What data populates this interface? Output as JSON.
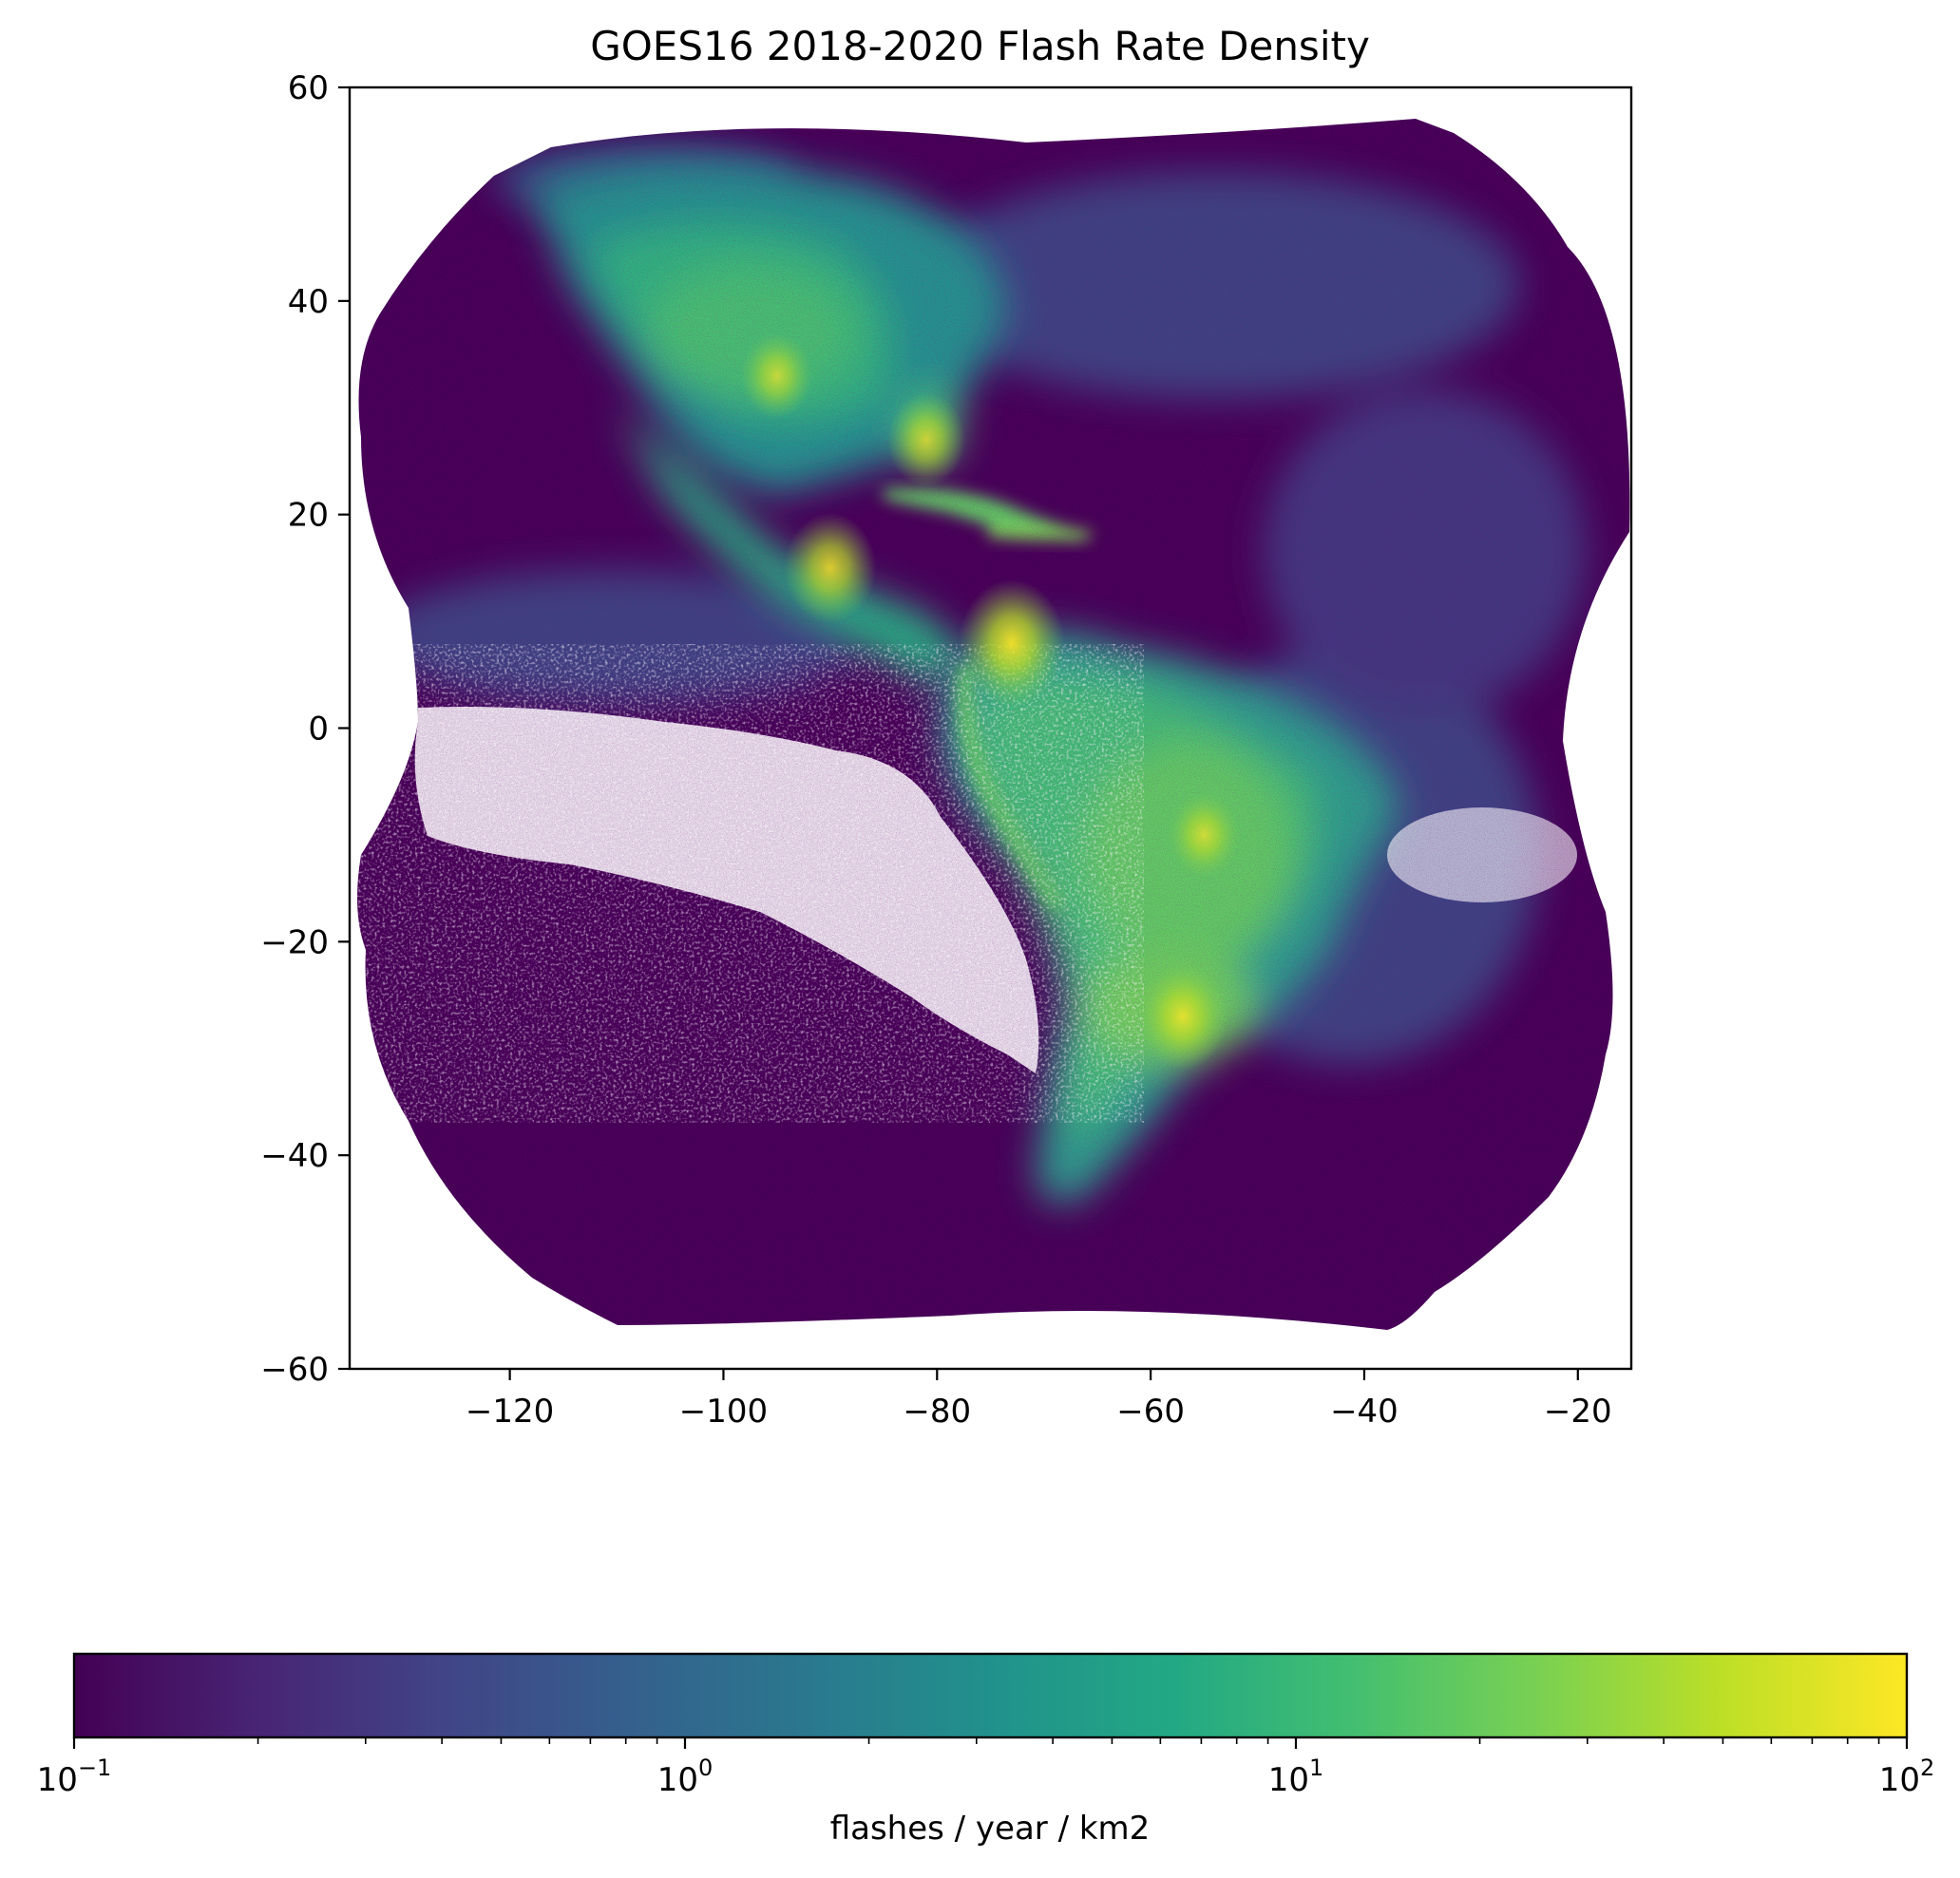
{
  "chart_data": {
    "type": "heatmap",
    "title": "GOES16 2018-2020 Flash Rate Density",
    "xlabel": "",
    "ylabel": "",
    "xlim": [
      -135,
      -15
    ],
    "ylim": [
      -60,
      60
    ],
    "x_ticks": [
      -120,
      -100,
      -80,
      -60,
      -40,
      -20
    ],
    "x_tick_labels": [
      "−120",
      "−100",
      "−80",
      "−60",
      "−40",
      "−20"
    ],
    "y_ticks": [
      60,
      40,
      20,
      0,
      -20,
      -40,
      -60
    ],
    "y_tick_labels": [
      "60",
      "40",
      "20",
      "0",
      "−20",
      "−40",
      "−60"
    ],
    "colormap": "viridis",
    "color_scale": "log",
    "colorbar": {
      "orientation": "horizontal",
      "label": "flashes / year / km2",
      "range": [
        0.1,
        100
      ],
      "ticks": [
        0.1,
        1,
        10,
        100
      ],
      "tick_labels": [
        {
          "base": "10",
          "exp": "−1"
        },
        {
          "base": "10",
          "exp": "0"
        },
        {
          "base": "10",
          "exp": "1"
        },
        {
          "base": "10",
          "exp": "2"
        }
      ]
    },
    "hotspots": [
      {
        "lon": -73,
        "lat": 8,
        "level": 80
      },
      {
        "lon": -90,
        "lat": 15,
        "level": 40
      },
      {
        "lon": -57,
        "lat": -27,
        "level": 35
      },
      {
        "lon": -95,
        "lat": 33,
        "level": 15
      },
      {
        "lon": -81,
        "lat": 27,
        "level": 20
      },
      {
        "lon": -55,
        "lat": -10,
        "level": 15
      }
    ]
  }
}
